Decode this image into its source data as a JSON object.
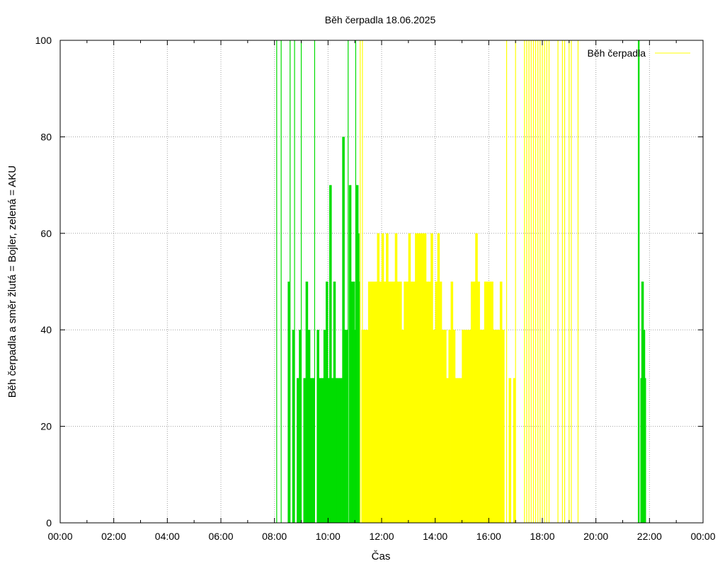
{
  "chart_data": {
    "type": "bar",
    "title": "Běh čerpadla 18.06.2025",
    "xlabel": "Čas",
    "ylabel": "Běh čerpadla a směr žlutá = Bojler, zelená = AKU",
    "xlim": [
      "00:00",
      "24:00"
    ],
    "ylim": [
      0,
      100
    ],
    "x_tick_labels": [
      "00:00",
      "02:00",
      "04:00",
      "06:00",
      "08:00",
      "10:00",
      "12:00",
      "14:00",
      "16:00",
      "18:00",
      "20:00",
      "22:00",
      "00:00"
    ],
    "y_tick_labels": [
      "0",
      "20",
      "40",
      "60",
      "80",
      "100"
    ],
    "grid": true,
    "legend": {
      "position": "top-right",
      "entries": [
        "Běh čerpadla"
      ]
    },
    "colors": {
      "green": "#00dd00",
      "yellow": "#ffff00",
      "grid": "#a0a0a0",
      "axis": "#000000"
    },
    "series": [
      {
        "color": "#00dd00",
        "bars": [
          {
            "x": "08:05",
            "y": 100
          },
          {
            "x": "08:15",
            "y": 100
          },
          {
            "x": "08:25",
            "y": 0
          },
          {
            "x": "08:30",
            "y": 50
          },
          {
            "x": "08:35",
            "y": 100
          },
          {
            "x": "08:40",
            "y": 40
          },
          {
            "x": "08:45",
            "y": 100
          },
          {
            "x": "08:50",
            "y": 30
          },
          {
            "x": "08:55",
            "y": 40
          },
          {
            "x": "09:00",
            "y": 100
          },
          {
            "x": "09:05",
            "y": 30
          },
          {
            "x": "09:10",
            "y": 50
          },
          {
            "x": "09:15",
            "y": 40
          },
          {
            "x": "09:20",
            "y": 30
          },
          {
            "x": "09:25",
            "y": 30
          },
          {
            "x": "09:30",
            "y": 100
          },
          {
            "x": "09:35",
            "y": 40
          },
          {
            "x": "09:40",
            "y": 30
          },
          {
            "x": "09:45",
            "y": 30
          },
          {
            "x": "09:50",
            "y": 40
          },
          {
            "x": "09:55",
            "y": 50
          },
          {
            "x": "10:00",
            "y": 30
          },
          {
            "x": "10:03",
            "y": 70
          },
          {
            "x": "10:05",
            "y": 30
          },
          {
            "x": "10:10",
            "y": 30
          },
          {
            "x": "10:12",
            "y": 50
          },
          {
            "x": "10:15",
            "y": 30
          },
          {
            "x": "10:20",
            "y": 30
          },
          {
            "x": "10:25",
            "y": 30
          },
          {
            "x": "10:30",
            "y": 30
          },
          {
            "x": "10:32",
            "y": 80
          },
          {
            "x": "10:35",
            "y": 40
          },
          {
            "x": "10:40",
            "y": 40
          },
          {
            "x": "10:45",
            "y": 100
          },
          {
            "x": "10:47",
            "y": 70
          },
          {
            "x": "10:50",
            "y": 40
          },
          {
            "x": "10:52",
            "y": 50
          },
          {
            "x": "10:55",
            "y": 50
          },
          {
            "x": "11:00",
            "y": 40
          },
          {
            "x": "11:02",
            "y": 100
          },
          {
            "x": "11:03",
            "y": 70
          },
          {
            "x": "11:05",
            "y": 60
          },
          {
            "x": "11:07",
            "y": 50
          },
          {
            "x": "21:35",
            "y": 100
          },
          {
            "x": "21:37",
            "y": 100
          },
          {
            "x": "21:40",
            "y": 30
          },
          {
            "x": "21:42",
            "y": 50
          },
          {
            "x": "21:45",
            "y": 40
          },
          {
            "x": "21:47",
            "y": 30
          }
        ]
      },
      {
        "name": "Běh čerpadla",
        "color": "#ffff00",
        "bars": [
          {
            "x": "11:12",
            "y": 100
          },
          {
            "x": "11:15",
            "y": 40
          },
          {
            "x": "11:17",
            "y": 100
          },
          {
            "x": "11:20",
            "y": 40
          },
          {
            "x": "11:25",
            "y": 40
          },
          {
            "x": "11:30",
            "y": 50
          },
          {
            "x": "11:35",
            "y": 50
          },
          {
            "x": "11:40",
            "y": 50
          },
          {
            "x": "11:45",
            "y": 50
          },
          {
            "x": "11:50",
            "y": 60
          },
          {
            "x": "11:55",
            "y": 50
          },
          {
            "x": "12:00",
            "y": 60
          },
          {
            "x": "12:05",
            "y": 50
          },
          {
            "x": "12:10",
            "y": 60
          },
          {
            "x": "12:15",
            "y": 50
          },
          {
            "x": "12:20",
            "y": 50
          },
          {
            "x": "12:25",
            "y": 50
          },
          {
            "x": "12:30",
            "y": 60
          },
          {
            "x": "12:35",
            "y": 50
          },
          {
            "x": "12:40",
            "y": 50
          },
          {
            "x": "12:45",
            "y": 40
          },
          {
            "x": "12:50",
            "y": 50
          },
          {
            "x": "12:55",
            "y": 50
          },
          {
            "x": "13:00",
            "y": 60
          },
          {
            "x": "13:05",
            "y": 50
          },
          {
            "x": "13:10",
            "y": 50
          },
          {
            "x": "13:15",
            "y": 60
          },
          {
            "x": "13:20",
            "y": 60
          },
          {
            "x": "13:25",
            "y": 60
          },
          {
            "x": "13:30",
            "y": 60
          },
          {
            "x": "13:35",
            "y": 60
          },
          {
            "x": "13:40",
            "y": 50
          },
          {
            "x": "13:45",
            "y": 50
          },
          {
            "x": "13:50",
            "y": 60
          },
          {
            "x": "13:55",
            "y": 40
          },
          {
            "x": "14:00",
            "y": 50
          },
          {
            "x": "14:05",
            "y": 60
          },
          {
            "x": "14:10",
            "y": 50
          },
          {
            "x": "14:15",
            "y": 40
          },
          {
            "x": "14:20",
            "y": 40
          },
          {
            "x": "14:25",
            "y": 30
          },
          {
            "x": "14:30",
            "y": 40
          },
          {
            "x": "14:35",
            "y": 50
          },
          {
            "x": "14:40",
            "y": 40
          },
          {
            "x": "14:45",
            "y": 30
          },
          {
            "x": "14:50",
            "y": 30
          },
          {
            "x": "14:55",
            "y": 30
          },
          {
            "x": "15:00",
            "y": 40
          },
          {
            "x": "15:05",
            "y": 40
          },
          {
            "x": "15:10",
            "y": 40
          },
          {
            "x": "15:15",
            "y": 40
          },
          {
            "x": "15:20",
            "y": 50
          },
          {
            "x": "15:25",
            "y": 50
          },
          {
            "x": "15:30",
            "y": 60
          },
          {
            "x": "15:35",
            "y": 50
          },
          {
            "x": "15:40",
            "y": 40
          },
          {
            "x": "15:45",
            "y": 40
          },
          {
            "x": "15:50",
            "y": 50
          },
          {
            "x": "15:55",
            "y": 50
          },
          {
            "x": "16:00",
            "y": 50
          },
          {
            "x": "16:05",
            "y": 50
          },
          {
            "x": "16:10",
            "y": 40
          },
          {
            "x": "16:15",
            "y": 40
          },
          {
            "x": "16:20",
            "y": 40
          },
          {
            "x": "16:25",
            "y": 50
          },
          {
            "x": "16:30",
            "y": 40
          },
          {
            "x": "16:40",
            "y": 100
          },
          {
            "x": "16:45",
            "y": 30
          },
          {
            "x": "16:55",
            "y": 30
          },
          {
            "x": "17:00",
            "y": 100
          },
          {
            "x": "17:20",
            "y": 100
          },
          {
            "x": "17:25",
            "y": 100
          },
          {
            "x": "17:30",
            "y": 100
          },
          {
            "x": "17:35",
            "y": 100
          },
          {
            "x": "17:40",
            "y": 100
          },
          {
            "x": "17:45",
            "y": 100
          },
          {
            "x": "17:50",
            "y": 100
          },
          {
            "x": "17:55",
            "y": 100
          },
          {
            "x": "18:00",
            "y": 100
          },
          {
            "x": "18:05",
            "y": 100
          },
          {
            "x": "18:10",
            "y": 100
          },
          {
            "x": "18:15",
            "y": 100
          },
          {
            "x": "18:35",
            "y": 100
          },
          {
            "x": "18:45",
            "y": 100
          },
          {
            "x": "18:50",
            "y": 100
          },
          {
            "x": "19:00",
            "y": 100
          },
          {
            "x": "19:05",
            "y": 100
          },
          {
            "x": "19:20",
            "y": 100
          }
        ]
      }
    ]
  }
}
